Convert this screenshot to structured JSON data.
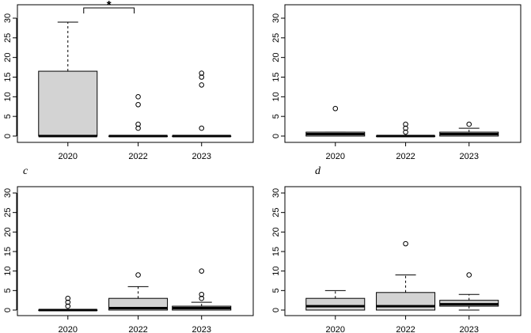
{
  "chart_data": [
    {
      "type": "boxplot",
      "panel_label": "",
      "categories": [
        "2020",
        "2022",
        "2023"
      ],
      "ylim": [
        0,
        30
      ],
      "yticks": [
        0,
        5,
        10,
        15,
        20,
        25,
        30
      ],
      "title": "",
      "xlabel": "",
      "ylabel": "",
      "grid": false,
      "boxes": [
        {
          "category": "2020",
          "min": 0,
          "q1": 0,
          "median": 0,
          "q3": 16.5,
          "max": 29,
          "outliers": []
        },
        {
          "category": "2022",
          "min": 0,
          "q1": 0,
          "median": 0,
          "q3": 0,
          "max": 0,
          "outliers": [
            2,
            3,
            8,
            10
          ]
        },
        {
          "category": "2023",
          "min": 0,
          "q1": 0,
          "median": 0,
          "q3": 0,
          "max": 0,
          "outliers": [
            2,
            13,
            15,
            16
          ]
        }
      ],
      "significance": [
        {
          "from": "2020",
          "to": "2022",
          "label": "*"
        }
      ]
    },
    {
      "type": "boxplot",
      "panel_label": "",
      "categories": [
        "2020",
        "2022",
        "2023"
      ],
      "ylim": [
        0,
        30
      ],
      "yticks": [
        0,
        5,
        10,
        15,
        20,
        25,
        30
      ],
      "title": "",
      "xlabel": "",
      "ylabel": "",
      "grid": false,
      "boxes": [
        {
          "category": "2020",
          "min": 0,
          "q1": 0,
          "median": 0.5,
          "q3": 1,
          "max": 1,
          "outliers": [
            7
          ]
        },
        {
          "category": "2022",
          "min": 0,
          "q1": 0,
          "median": 0,
          "q3": 0,
          "max": 0,
          "outliers": [
            1,
            2,
            3
          ]
        },
        {
          "category": "2023",
          "min": 0,
          "q1": 0,
          "median": 0.5,
          "q3": 1,
          "max": 2,
          "outliers": [
            3
          ]
        }
      ],
      "significance": []
    },
    {
      "type": "boxplot",
      "panel_label": "c",
      "categories": [
        "2020",
        "2022",
        "2023"
      ],
      "ylim": [
        0,
        30
      ],
      "yticks": [
        0,
        5,
        10,
        15,
        20,
        25,
        30
      ],
      "title": "",
      "xlabel": "",
      "ylabel": "",
      "grid": false,
      "boxes": [
        {
          "category": "2020",
          "min": 0,
          "q1": 0,
          "median": 0,
          "q3": 0,
          "max": 0,
          "outliers": [
            1,
            2,
            3
          ]
        },
        {
          "category": "2022",
          "min": 0,
          "q1": 0,
          "median": 0.5,
          "q3": 3,
          "max": 6,
          "outliers": [
            9
          ]
        },
        {
          "category": "2023",
          "min": 0,
          "q1": 0,
          "median": 0.5,
          "q3": 1,
          "max": 2,
          "outliers": [
            3,
            4,
            10
          ]
        }
      ],
      "significance": []
    },
    {
      "type": "boxplot",
      "panel_label": "d",
      "categories": [
        "2020",
        "2022",
        "2023"
      ],
      "ylim": [
        0,
        30
      ],
      "yticks": [
        0,
        5,
        10,
        15,
        20,
        25,
        30
      ],
      "title": "",
      "xlabel": "",
      "ylabel": "",
      "grid": false,
      "boxes": [
        {
          "category": "2020",
          "min": 0,
          "q1": 0,
          "median": 1,
          "q3": 3,
          "max": 5,
          "outliers": []
        },
        {
          "category": "2022",
          "min": 0,
          "q1": 0,
          "median": 1,
          "q3": 4.5,
          "max": 9,
          "outliers": [
            17
          ]
        },
        {
          "category": "2023",
          "min": 0,
          "q1": 1,
          "median": 1.5,
          "q3": 2.5,
          "max": 4,
          "outliers": [
            9
          ]
        }
      ],
      "significance": []
    }
  ]
}
